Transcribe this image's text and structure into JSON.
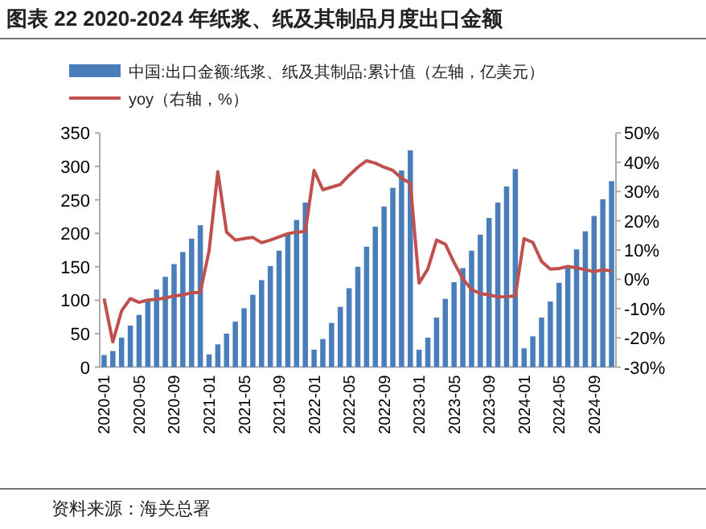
{
  "chart_data": {
    "type": "bar",
    "title": "图表 22 2020-2024 年纸浆、纸及其制品月度出口金额",
    "categories": [
      "2020-01",
      null,
      null,
      null,
      "2020-05",
      null,
      null,
      null,
      "2020-09",
      null,
      null,
      null,
      "2021-01",
      null,
      null,
      null,
      "2021-05",
      null,
      null,
      null,
      "2021-09",
      null,
      null,
      null,
      "2022-01",
      null,
      null,
      null,
      "2022-05",
      null,
      null,
      null,
      "2022-09",
      null,
      null,
      null,
      "2023-01",
      null,
      null,
      null,
      "2023-05",
      null,
      null,
      null,
      "2023-09",
      null,
      null,
      null,
      "2024-01",
      null,
      null,
      null,
      "2024-05",
      null,
      null,
      null,
      "2024-09",
      null,
      null
    ],
    "series": [
      {
        "name": "中国:出口金额:纸浆、纸及其制品:累计值（左轴，亿美元）",
        "color": "#4a7ebb",
        "values": [
          18,
          24,
          44,
          62,
          78,
          98,
          116,
          135,
          154,
          172,
          192,
          212,
          19,
          34,
          50,
          68,
          88,
          108,
          130,
          151,
          174,
          199,
          220,
          246,
          26,
          42,
          66,
          90,
          118,
          150,
          180,
          210,
          240,
          268,
          294,
          324,
          26,
          44,
          74,
          102,
          127,
          148,
          174,
          198,
          223,
          246,
          270,
          296,
          28,
          46,
          74,
          98,
          126,
          150,
          176,
          203,
          226,
          251,
          278
        ]
      },
      {
        "name": "yoy（右轴，%）",
        "type": "line",
        "axis": "y2",
        "color": "#c0504d",
        "values": [
          -6.6,
          -21.4,
          -10.8,
          -6.6,
          -7.9,
          -7.1,
          -6.8,
          -6.4,
          -5.7,
          -5.3,
          -4.6,
          -4.4,
          9.7,
          36.8,
          16.1,
          13.4,
          13.9,
          14.3,
          12.5,
          13.4,
          14.5,
          15.6,
          16.1,
          16.3,
          37.2,
          30.6,
          31.5,
          32.4,
          35.5,
          38.3,
          40.5,
          39.7,
          38.3,
          37.2,
          34.6,
          32.8,
          -1.3,
          3.5,
          13.4,
          12,
          5.7,
          0.2,
          -3.5,
          -4.9,
          -5.3,
          -6,
          -5.9,
          -5.7,
          13.9,
          12.6,
          6.1,
          3.5,
          3.7,
          4.4,
          3.9,
          3.3,
          2.6,
          3.3,
          2.8
        ]
      }
    ],
    "ylim": [
      0,
      350
    ],
    "yticks": [
      0,
      50,
      100,
      150,
      200,
      250,
      300,
      350
    ],
    "y2lim": [
      -30,
      50
    ],
    "y2ticks": [
      {
        "value": -30,
        "label": "-30%"
      },
      {
        "value": -20,
        "label": "-20%"
      },
      {
        "value": -10,
        "label": "-10%"
      },
      {
        "value": 0,
        "label": "0%"
      },
      {
        "value": 10,
        "label": "10%"
      },
      {
        "value": 20,
        "label": "20%"
      },
      {
        "value": 30,
        "label": "30%"
      },
      {
        "value": 40,
        "label": "40%"
      },
      {
        "value": 50,
        "label": "50%"
      }
    ],
    "legend": "top left",
    "annotations": [
      "资料来源：海关总署"
    ]
  }
}
